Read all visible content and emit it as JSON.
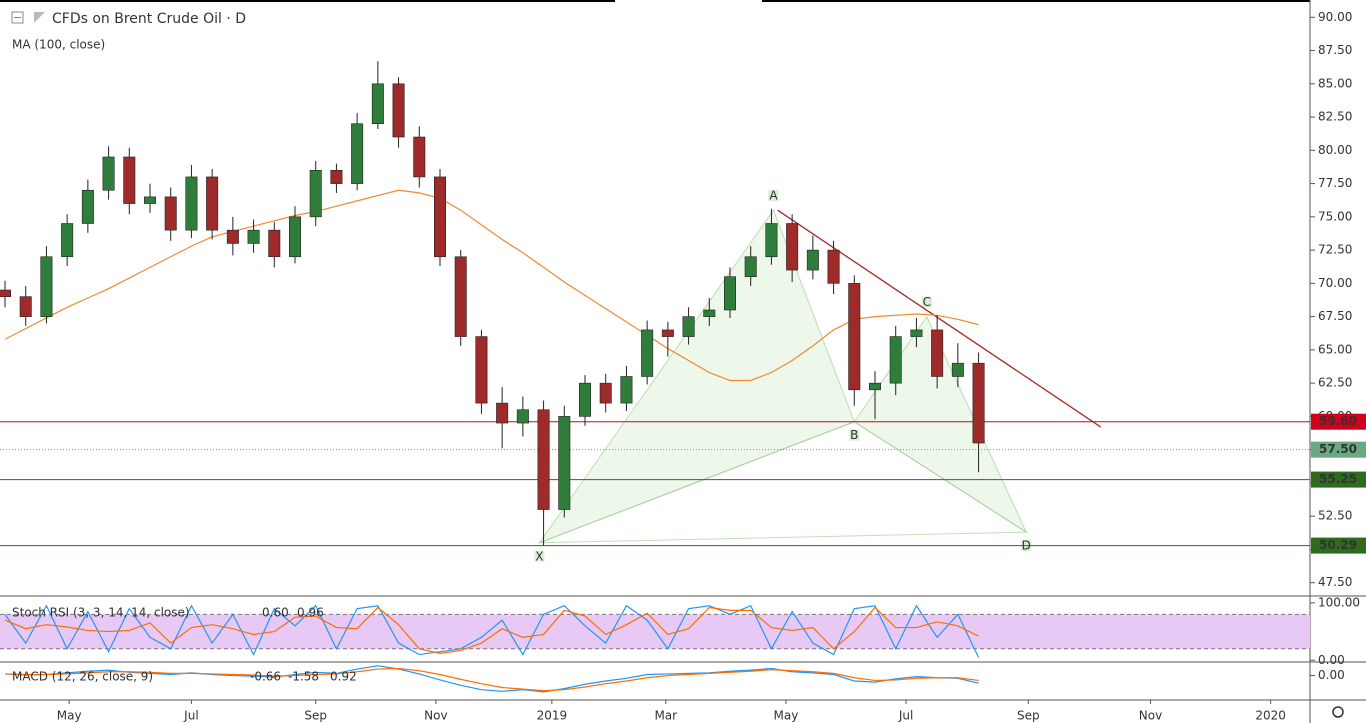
{
  "chart_data": {
    "type": "candlestick",
    "title": "CFDs on Brent Crude Oil · D",
    "ma_label": "MA (100, close)",
    "up_color": "#2f7d3b",
    "down_color": "#9e2a2a",
    "ma_color": "#f08a2c",
    "xlim": [
      0,
      63
    ],
    "xticks": [
      {
        "value": 3.1,
        "label": "May"
      },
      {
        "value": 9.0,
        "label": "Jul"
      },
      {
        "value": 15.0,
        "label": "Sep"
      },
      {
        "value": 20.8,
        "label": "Nov"
      },
      {
        "value": 26.4,
        "label": "2019"
      },
      {
        "value": 31.9,
        "label": "Mar"
      },
      {
        "value": 37.7,
        "label": "May"
      },
      {
        "value": 43.5,
        "label": "Jul"
      },
      {
        "value": 49.4,
        "label": "Sep"
      },
      {
        "value": 55.3,
        "label": "Nov"
      },
      {
        "value": 61.1,
        "label": "2020"
      }
    ],
    "ylim": [
      46.5,
      91.3
    ],
    "yticks": [
      {
        "value": 90,
        "label": "90.00"
      },
      {
        "value": 87.5,
        "label": "87.50"
      },
      {
        "value": 85,
        "label": "85.00"
      },
      {
        "value": 82.5,
        "label": "82.50"
      },
      {
        "value": 80,
        "label": "80.00"
      },
      {
        "value": 77.5,
        "label": "77.50"
      },
      {
        "value": 75,
        "label": "75.00"
      },
      {
        "value": 72.5,
        "label": "72.50"
      },
      {
        "value": 70,
        "label": "70.00"
      },
      {
        "value": 67.5,
        "label": "67.50"
      },
      {
        "value": 65,
        "label": "65.00"
      },
      {
        "value": 62.5,
        "label": "62.50"
      },
      {
        "value": 60,
        "label": "60.00"
      },
      {
        "value": 57.5,
        "label": "57.50"
      },
      {
        "value": 55,
        "label": "55.00"
      },
      {
        "value": 52.5,
        "label": "52.50"
      },
      {
        "value": 50,
        "label": "50.00"
      },
      {
        "value": 47.5,
        "label": "47.50"
      }
    ],
    "ohlc": {
      "open": [
        69.5,
        69,
        67.5,
        72,
        74.5,
        77,
        79.5,
        76,
        76.5,
        74,
        78,
        74,
        73,
        74,
        72,
        75,
        78.5,
        77.5,
        82,
        85,
        81,
        78,
        72,
        66,
        61,
        59.5,
        60.5,
        53,
        60,
        62.5,
        61,
        63,
        66.5,
        66,
        67.5,
        68,
        70.5,
        72,
        74.5,
        71,
        72.5,
        70,
        62,
        62.5,
        66,
        66.5,
        63,
        64
      ],
      "high": [
        70.2,
        69.8,
        72.8,
        75.2,
        77.8,
        80.3,
        80.2,
        77.5,
        77.2,
        78.9,
        78.6,
        75,
        74.8,
        74.6,
        75.8,
        79.2,
        79,
        82.8,
        86.7,
        85.5,
        81.8,
        78.6,
        72.5,
        66.5,
        62.2,
        61.5,
        61.2,
        60.8,
        63.1,
        63.2,
        63.8,
        67.2,
        67.1,
        68.2,
        68.9,
        71.2,
        72.8,
        75.6,
        75.2,
        73.6,
        73.2,
        70.6,
        63.4,
        66.8,
        67.4,
        67.6,
        65.5,
        64.8
      ],
      "low": [
        68.2,
        66.8,
        67,
        71.3,
        73.8,
        76.3,
        75.2,
        75.3,
        73.2,
        73.4,
        73.3,
        72.1,
        72.3,
        71.2,
        71.5,
        74.3,
        76.8,
        77,
        81.6,
        80.2,
        77.2,
        71.3,
        65.3,
        60.2,
        57.6,
        58.5,
        50.3,
        52.4,
        59.3,
        60.3,
        60.4,
        62.4,
        64.5,
        65.4,
        66.8,
        67.4,
        69.8,
        71.4,
        70.1,
        70.3,
        69.2,
        60.8,
        59.8,
        61.6,
        65.2,
        62.1,
        62.2,
        55.8
      ],
      "close": [
        69,
        67.5,
        72,
        74.5,
        77,
        79.5,
        76,
        76.5,
        74,
        78,
        74,
        73,
        74,
        72,
        75,
        78.5,
        77.5,
        82,
        85,
        81,
        78,
        72,
        66,
        61,
        59.5,
        60.5,
        53,
        60,
        62.5,
        61,
        63,
        66.5,
        66,
        67.5,
        68,
        70.5,
        72,
        74.5,
        71,
        72.5,
        70,
        62,
        62.5,
        66,
        66.5,
        63,
        64,
        58
      ]
    },
    "ma": [
      65.8,
      66.6,
      67.4,
      68.2,
      68.9,
      69.6,
      70.4,
      71.2,
      72.0,
      72.8,
      73.5,
      73.9,
      74.3,
      74.7,
      75.1,
      75.4,
      75.8,
      76.2,
      76.6,
      77.0,
      76.8,
      76.4,
      75.5,
      74.4,
      73.3,
      72.3,
      71.2,
      70.1,
      69.1,
      68.1,
      67.1,
      66.1,
      65.1,
      64.2,
      63.3,
      62.7,
      62.7,
      63.3,
      64.2,
      65.3,
      66.5,
      67.3,
      67.5,
      67.6,
      67.7,
      67.6,
      67.3,
      66.9
    ],
    "levels": [
      {
        "value": 59.6,
        "label": "59.60",
        "color": "#d0021b",
        "style": "solid"
      },
      {
        "value": 57.5,
        "label": "57.50",
        "color": "#6aa882",
        "style": "dotted"
      },
      {
        "value": 55.25,
        "label": "55.25",
        "color": "#2e6b1f",
        "style": "solid"
      },
      {
        "value": 50.29,
        "label": "50.29",
        "color": "#2e6b1f",
        "style": "solid"
      }
    ],
    "trendline": {
      "from": [
        37.3,
        75.5
      ],
      "to": [
        52.9,
        59.2
      ],
      "color": "#a52a2a"
    },
    "pattern": [
      {
        "label": "X",
        "x": 25.8,
        "y": 50.5
      },
      {
        "label": "A",
        "x": 37.1,
        "y": 75.5
      },
      {
        "label": "B",
        "x": 41.0,
        "y": 59.6
      },
      {
        "label": "C",
        "x": 44.5,
        "y": 67.5
      },
      {
        "label": "D",
        "x": 49.3,
        "y": 51.3
      }
    ],
    "stoch": {
      "name": "Stoch RSI (3, 3, 14, 14, close)",
      "readout": [
        0.6,
        0.96
      ],
      "readout_labels": [
        "0.60",
        "0.96"
      ],
      "ylim": [
        -3,
        112
      ],
      "yticks": [
        {
          "value": 100,
          "label": "100.00"
        },
        {
          "value": 0,
          "label": "0.00"
        }
      ],
      "bands": [
        80,
        20
      ],
      "k": [
        80,
        30,
        95,
        20,
        85,
        15,
        90,
        40,
        20,
        95,
        30,
        80,
        10,
        90,
        60,
        95,
        20,
        90,
        95,
        30,
        10,
        15,
        20,
        40,
        70,
        10,
        80,
        95,
        60,
        30,
        95,
        70,
        20,
        90,
        95,
        80,
        95,
        20,
        85,
        30,
        10,
        90,
        95,
        20,
        95,
        40,
        80,
        5
      ],
      "d": [
        70,
        55,
        62,
        58,
        52,
        50,
        52,
        65,
        30,
        57,
        62,
        55,
        45,
        50,
        75,
        77,
        57,
        55,
        92,
        62,
        20,
        12,
        17,
        30,
        55,
        40,
        45,
        87,
        77,
        45,
        62,
        82,
        45,
        55,
        92,
        87,
        87,
        57,
        52,
        57,
        20,
        50,
        92,
        57,
        57,
        67,
        60,
        42
      ],
      "k_color": "#2196f3",
      "d_color": "#ff6d00"
    },
    "macd": {
      "name": "MACD (12, 26, close, 9)",
      "readout": [
        -0.66,
        -1.58,
        0.92
      ],
      "readout_labels": [
        "-0.66",
        "-1.58",
        "0.92"
      ],
      "ylim": [
        -4.5,
        2.5
      ],
      "yticks": [
        {
          "value": 0,
          "label": "0.00"
        }
      ],
      "macd": [
        0.3,
        0.1,
        0.2,
        0.5,
        0.8,
        1.0,
        0.6,
        0.4,
        0.2,
        0.5,
        0.2,
        0,
        -0.1,
        -0.3,
        0.2,
        0.6,
        0.4,
        1.2,
        1.8,
        1.2,
        0.3,
        -0.8,
        -1.8,
        -2.6,
        -2.9,
        -2.6,
        -3.0,
        -2.4,
        -1.6,
        -1.0,
        -0.5,
        0.2,
        0.3,
        0.4,
        0.5,
        0.8,
        1.0,
        1.3,
        0.7,
        0.5,
        0.2,
        -1.0,
        -1.2,
        -0.6,
        -0.2,
        -0.4,
        -0.5,
        -1.4
      ],
      "signal": [
        0.3,
        0.2,
        0.2,
        0.3,
        0.5,
        0.7,
        0.7,
        0.6,
        0.4,
        0.4,
        0.3,
        0.2,
        0.1,
        -0.1,
        0,
        0.2,
        0.3,
        0.7,
        1.2,
        1.3,
        0.9,
        0.2,
        -0.7,
        -1.5,
        -2.2,
        -2.5,
        -2.8,
        -2.6,
        -2.1,
        -1.5,
        -1.0,
        -0.4,
        0,
        0.2,
        0.4,
        0.6,
        0.8,
        1.1,
        0.9,
        0.7,
        0.4,
        -0.4,
        -0.9,
        -0.8,
        -0.5,
        -0.4,
        -0.4,
        -0.9
      ],
      "macd_color": "#2196f3",
      "signal_color": "#ff6d00"
    }
  }
}
